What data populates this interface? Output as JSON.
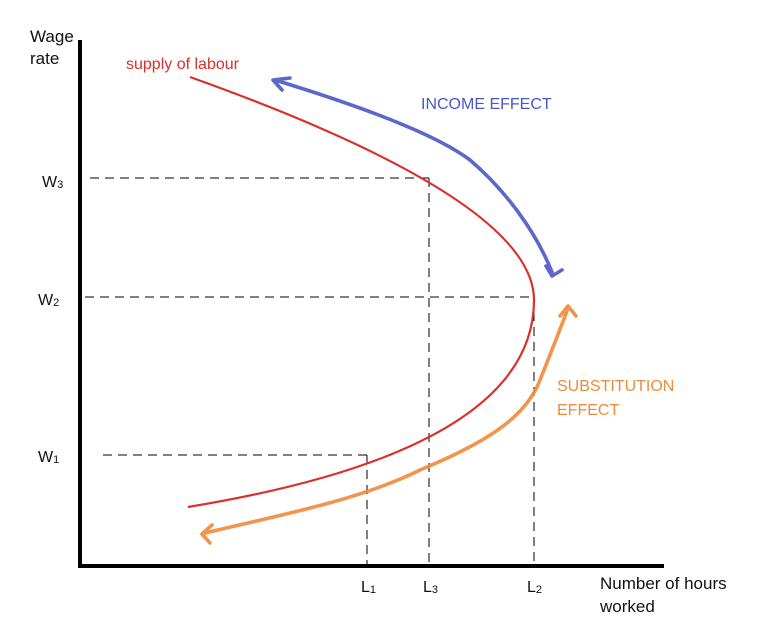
{
  "axes": {
    "y_title_line1": "Wage",
    "y_title_line2": "rate",
    "x_title_line1": "Number of hours",
    "x_title_line2": "worked"
  },
  "wage_levels": [
    {
      "main": "W",
      "sub": "3"
    },
    {
      "main": "W",
      "sub": "2"
    },
    {
      "main": "W",
      "sub": "1"
    }
  ],
  "hour_levels": [
    {
      "main": "L",
      "sub": "1"
    },
    {
      "main": "L",
      "sub": "3"
    },
    {
      "main": "L",
      "sub": "2"
    }
  ],
  "curve_label": "supply of labour",
  "income_effect": "INCOME EFFECT",
  "substitution_line1": "SUBSTITUTION",
  "substitution_line2": "EFFECT",
  "colors": {
    "curve": "#d9302a",
    "income": "#4a57c4",
    "substitution": "#f08a3a",
    "axis": "#000000",
    "guide": "#000000"
  }
}
